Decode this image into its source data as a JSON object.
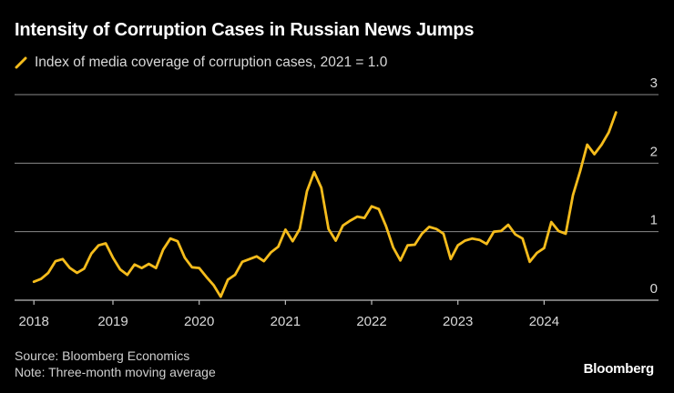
{
  "header": {
    "title": "Intensity of Corruption Cases in Russian News Jumps",
    "legend_label": "Index of media coverage of corruption cases, 2021 = 1.0"
  },
  "footer": {
    "source": "Source: Bloomberg Economics",
    "note": "Note: Three-month moving average",
    "brand": "Bloomberg"
  },
  "colors": {
    "background": "#000000",
    "line": "#F5BC1C",
    "grid": "#8a8a8a",
    "axis_text": "#d9d9d9"
  },
  "chart_data": {
    "type": "line",
    "title": "Intensity of Corruption Cases in Russian News Jumps",
    "xlabel": "",
    "ylabel": "",
    "ylim": [
      0,
      3
    ],
    "yticks": [
      0,
      1,
      2,
      3
    ],
    "ytick_labels": [
      "0",
      "1",
      "2",
      "3"
    ],
    "y_axis_side": "right",
    "xticks": [
      "2018",
      "2019",
      "2020",
      "2021",
      "2022",
      "2023",
      "2024"
    ],
    "x_start": "2018-02",
    "x_end": "2024-11",
    "grid": true,
    "legend_position": "top-left",
    "series": [
      {
        "name": "Index of media coverage of corruption cases, 2021 = 1.0",
        "frequency": "monthly",
        "start": "2018-02",
        "values": [
          0.27,
          0.31,
          0.4,
          0.57,
          0.6,
          0.47,
          0.4,
          0.46,
          0.68,
          0.8,
          0.83,
          0.62,
          0.45,
          0.37,
          0.52,
          0.47,
          0.53,
          0.47,
          0.74,
          0.9,
          0.86,
          0.62,
          0.48,
          0.47,
          0.34,
          0.22,
          0.05,
          0.3,
          0.37,
          0.56,
          0.6,
          0.64,
          0.57,
          0.7,
          0.78,
          1.03,
          0.86,
          1.04,
          1.59,
          1.87,
          1.64,
          1.04,
          0.87,
          1.09,
          1.16,
          1.22,
          1.2,
          1.37,
          1.33,
          1.08,
          0.77,
          0.58,
          0.8,
          0.81,
          0.97,
          1.07,
          1.04,
          0.97,
          0.6,
          0.8,
          0.87,
          0.9,
          0.88,
          0.82,
          1.0,
          1.01,
          1.1,
          0.96,
          0.9,
          0.56,
          0.69,
          0.76,
          1.14,
          1.01,
          0.97,
          1.53,
          1.88,
          2.27,
          2.13,
          2.27,
          2.45,
          2.74
        ]
      }
    ]
  }
}
